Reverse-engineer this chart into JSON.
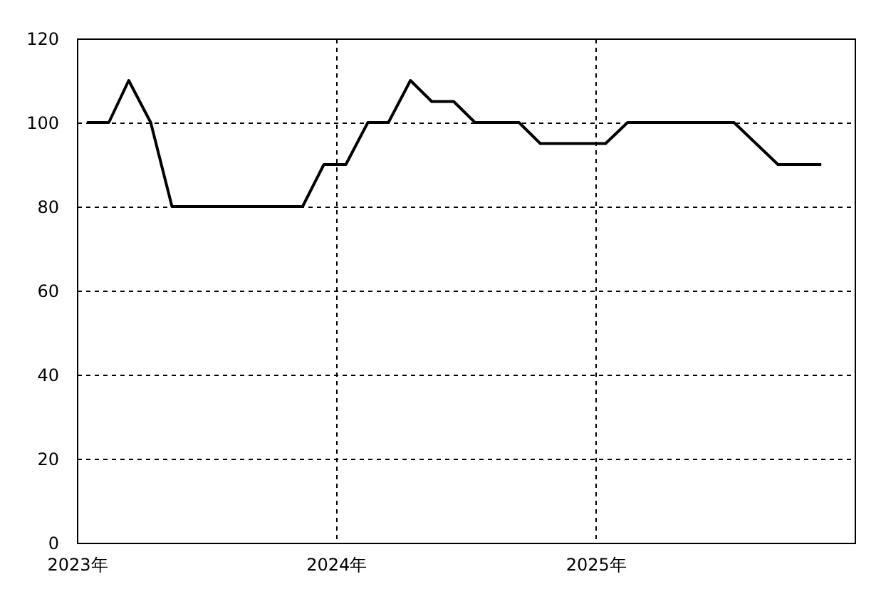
{
  "chart_data": {
    "type": "line",
    "x": [
      "2023-01-15",
      "2023-02-15",
      "2023-03-15",
      "2023-04-15",
      "2023-05-15",
      "2023-06-15",
      "2023-07-15",
      "2023-08-15",
      "2023-09-15",
      "2023-10-15",
      "2023-11-15",
      "2023-12-15",
      "2024-01-15",
      "2024-02-15",
      "2024-03-15",
      "2024-04-15",
      "2024-05-15",
      "2024-06-15",
      "2024-07-15",
      "2024-08-15",
      "2024-09-15",
      "2024-10-15",
      "2024-11-15",
      "2024-12-15",
      "2025-01-15",
      "2025-02-15",
      "2025-03-15",
      "2025-04-15",
      "2025-05-15",
      "2025-06-15",
      "2025-07-15",
      "2025-08-15",
      "2025-09-15",
      "2025-10-15",
      "2025-11-15"
    ],
    "values": [
      100,
      100,
      110,
      100,
      80,
      80,
      80,
      80,
      80,
      80,
      80,
      90,
      90,
      100,
      100,
      110,
      105,
      105,
      100,
      100,
      100,
      95,
      95,
      95,
      95,
      100,
      100,
      100,
      100,
      100,
      100,
      95,
      90,
      90,
      90
    ],
    "color": "#000000",
    "xlim": [
      "2023-01-01",
      "2026-01-01"
    ],
    "xticks": [
      {
        "value": "2023",
        "label": "2023年"
      },
      {
        "value": "2024",
        "label": "2024年"
      },
      {
        "value": "2025",
        "label": "2025年"
      }
    ],
    "ylim": [
      0,
      120
    ],
    "yticks": [
      0,
      20,
      40,
      60,
      80,
      100,
      120
    ],
    "grid": true
  }
}
